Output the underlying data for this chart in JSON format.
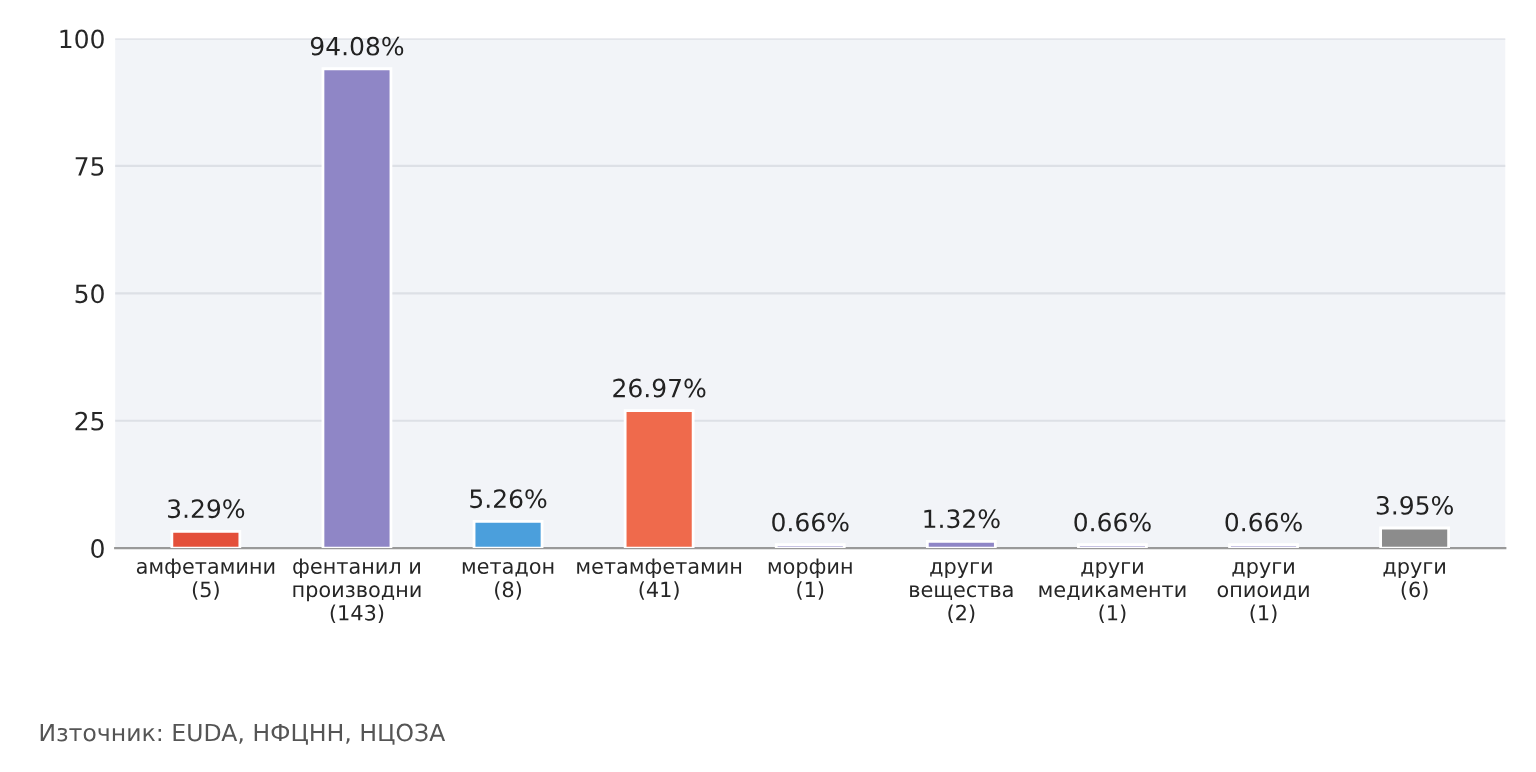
{
  "chart_data": {
    "type": "bar",
    "categories": [
      "амфетамини\n(5)",
      "фентанил и\nпроизводни\n(143)",
      "метадон\n(8)",
      "метамфетамин\n(41)",
      "морфин\n(1)",
      "други\nвещества\n(2)",
      "други\nмедикаменти\n(1)",
      "други\nопиоиди\n(1)",
      "други\n(6)"
    ],
    "values": [
      3.29,
      94.08,
      5.26,
      26.97,
      0.66,
      1.32,
      0.66,
      0.66,
      3.95
    ],
    "colors": [
      "#e4503a",
      "#8f86c6",
      "#4b9fdc",
      "#ef6a4c",
      "#8f86c6",
      "#8f86c6",
      "#8f86c6",
      "#8f86c6",
      "#8c8c8c"
    ],
    "value_labels": [
      "3.29%",
      "94.08%",
      "5.26%",
      "26.97%",
      "0.66%",
      "1.32%",
      "0.66%",
      "0.66%",
      "3.95%"
    ],
    "ylim": [
      0,
      100
    ],
    "yticks": [
      0,
      25,
      50,
      75,
      100
    ],
    "grid": "y",
    "annotations": [
      "Източник: EUDA, НФЦНН, НЦОЗА"
    ]
  }
}
